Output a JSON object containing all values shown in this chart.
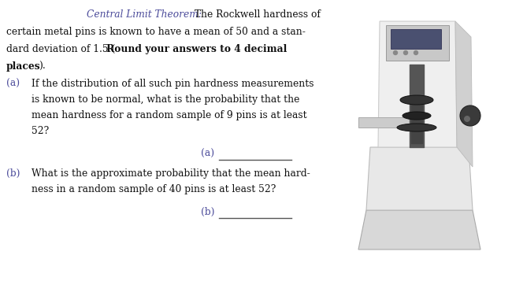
{
  "bg_color": "#ffffff",
  "text_color": "#111111",
  "blue_color": "#4b4b9a",
  "line_color": "#555555",
  "font_size": 8.8,
  "fig_width": 6.5,
  "fig_height": 3.57,
  "line1_italic": "Central Limit Theorem:",
  "line1_normal": " The Rockwell hardness of",
  "line2": "certain metal pins is known to have a mean of 50 and a stan-",
  "line3_normal": "dard deviation of 1.5 (",
  "line3_bold": "Round your answers to 4 decimal",
  "line4_bold": "places",
  "line4_normal": ").",
  "a_label": "(a)",
  "a_text1": "If the distribution of all such pin hardness measurements",
  "a_text2": "is known to be normal, what is the probability that the",
  "a_text3": "mean hardness for a random sample of 9 pins is at least",
  "a_text4": "52?",
  "ans_a_label": "(a)",
  "b_label": "(b)",
  "b_text1": "What is the approximate probability that the mean hard-",
  "b_text2": "ness in a random sample of 40 pins is at least 52?",
  "ans_b_label": "(b)"
}
